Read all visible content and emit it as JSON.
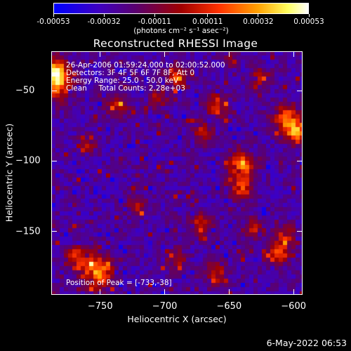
{
  "colorbar": {
    "tick_labels": [
      "-0.00053",
      "-0.00032",
      "-0.00011",
      "0.00011",
      "0.00032",
      "0.00053"
    ],
    "units": "(photons cm⁻² s⁻¹ asec⁻²)"
  },
  "chart_data": {
    "type": "heatmap",
    "title": "Reconstructed RHESSI Image",
    "xlabel": "Heliocentric X (arcsec)",
    "ylabel": "Heliocentric Y (arcsec)",
    "xlim": [
      -788,
      -593
    ],
    "ylim": [
      -195,
      -22
    ],
    "xticks": [
      -750,
      -700,
      -650,
      -600
    ],
    "yticks": [
      -50,
      -100,
      -150
    ],
    "xtick_labels": [
      "−750",
      "−700",
      "−650",
      "−600"
    ],
    "ytick_labels": [
      "−50",
      "−100",
      "−150"
    ],
    "zlim": [
      -0.00053,
      0.00053
    ],
    "colormap": "blue-purple-red-yellow-white",
    "peak_position": [
      -733,
      -38
    ],
    "annotations": [
      "26-Apr-2006 01:59:24.000 to 02:00:52.000",
      "Detectors: 3F 4F 5F 6F 7F 8F, Att 0",
      "Energy Range: 25.0 - 50.0 keV",
      "Clean     Total Counts: 2.28e+03"
    ],
    "peak_label": "Position of Peak = [-733,-38]"
  },
  "timestamp": "6-May-2022 06:53"
}
